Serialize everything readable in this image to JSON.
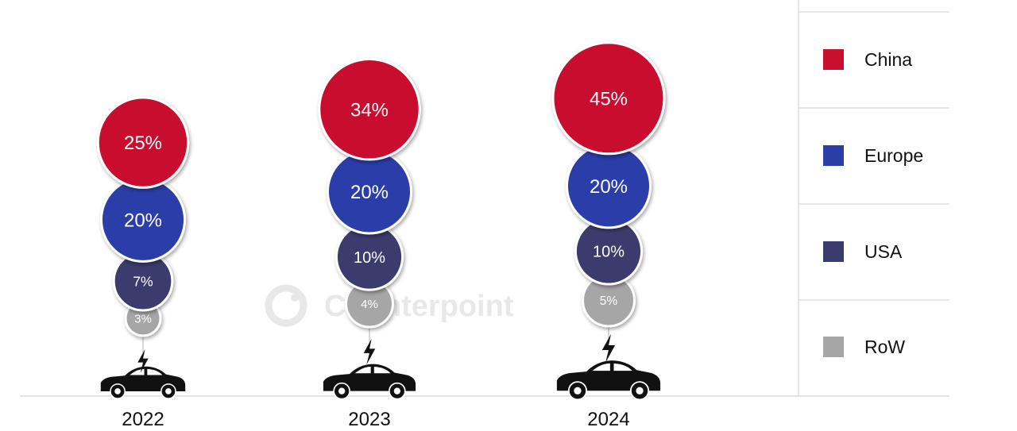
{
  "watermark": "Counterpoint",
  "colors": {
    "China": "#c8102e",
    "Europe": "#2b3ea8",
    "USA": "#3a3b6e",
    "RoW": "#a6a6a6"
  },
  "chart_data": {
    "type": "bubble-stack",
    "categories": [
      "2022",
      "2023",
      "2024"
    ],
    "series": [
      {
        "name": "China",
        "values": [
          25,
          34,
          45
        ]
      },
      {
        "name": "Europe",
        "values": [
          20,
          20,
          20
        ]
      },
      {
        "name": "USA",
        "values": [
          7,
          10,
          10
        ]
      },
      {
        "name": "RoW",
        "values": [
          3,
          4,
          5
        ]
      }
    ],
    "value_suffix": "%",
    "legend": [
      "China",
      "Europe",
      "USA",
      "RoW"
    ],
    "legend_position": "right",
    "icon": "electric-car-icon"
  }
}
